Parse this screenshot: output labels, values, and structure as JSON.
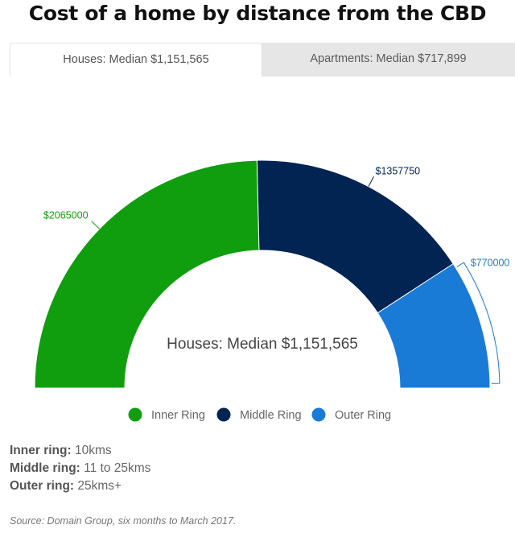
{
  "page": {
    "title": "Cost of a home by distance from the CBD"
  },
  "tabs": [
    {
      "label": "Houses: Median $1,151,565",
      "active": true
    },
    {
      "label": "Apartments: Median $717,899",
      "active": false
    }
  ],
  "chart_data": {
    "type": "pie",
    "variant": "semi-donut",
    "center_label": "Houses: Median $1,151,565",
    "categories": [
      "Inner Ring",
      "Middle Ring",
      "Outer Ring"
    ],
    "values": [
      2065000,
      1357750,
      770000
    ],
    "data_labels": [
      "$2065000",
      "$1357750",
      "$770000"
    ],
    "colors": [
      "#109e0e",
      "#022452",
      "#1a7bd6"
    ],
    "legend": {
      "placement": "bottom",
      "items": [
        "Inner Ring",
        "Middle Ring",
        "Outer Ring"
      ]
    }
  },
  "notes": [
    {
      "term": "Inner ring:",
      "desc": "10kms"
    },
    {
      "term": "Middle ring:",
      "desc": "11 to 25kms"
    },
    {
      "term": "Outer ring:",
      "desc": "25kms+"
    }
  ],
  "source": "Source: Domain Group, six months to March 2017."
}
